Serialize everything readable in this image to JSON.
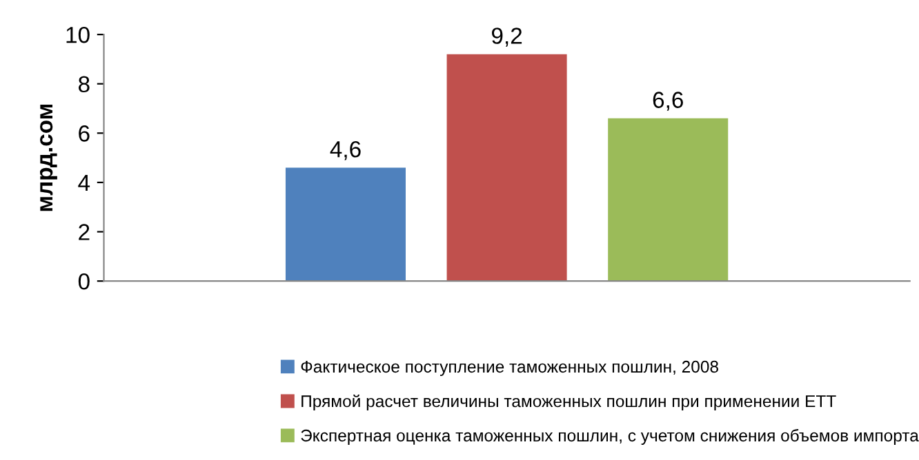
{
  "chart_data": {
    "type": "bar",
    "categories": [
      null
    ],
    "ylabel": "млрд.сом",
    "series": [
      {
        "name": "Фактическое поступление таможенных пошлин, 2008",
        "color": "#4f81bd",
        "values": [
          4.6
        ],
        "value_labels": [
          "4,6"
        ]
      },
      {
        "name": "Прямой расчет величины таможенных пошлин при применении ЕТТ",
        "color": "#c0504d",
        "values": [
          9.2
        ],
        "value_labels": [
          "9,2"
        ]
      },
      {
        "name": "Экспертная оценка таможенных пошлин, с учетом снижения объемов импорта",
        "color": "#9bbb59",
        "values": [
          6.6
        ],
        "value_labels": [
          "6,6"
        ]
      }
    ],
    "ylim": [
      0,
      10
    ],
    "yticks": [
      0,
      2,
      4,
      6,
      8,
      10
    ],
    "grid": false,
    "legend": "bottom"
  }
}
